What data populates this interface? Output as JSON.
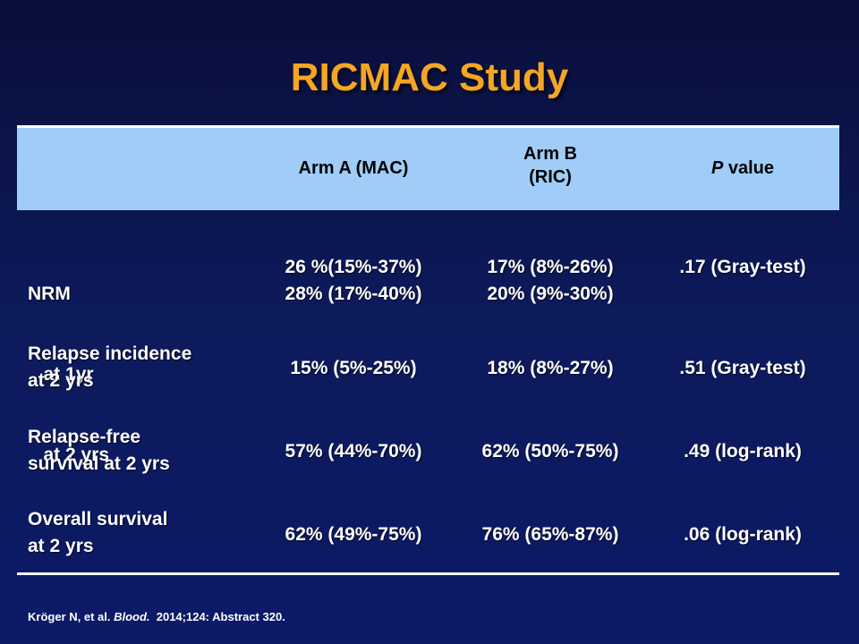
{
  "slide": {
    "title": "RICMAC Study",
    "header": {
      "arm_a": "Arm A (MAC)",
      "arm_b_line1": "Arm B",
      "arm_b_line2": "(RIC)",
      "p_italic": "P",
      "p_rest": " value"
    },
    "rows": [
      {
        "label_lines": [
          "NRM",
          "   at 1yr",
          "   at 2 yrs"
        ],
        "arm_a": [
          "26 %(15%-37%)",
          "28% (17%-40%)"
        ],
        "arm_b": [
          "17% (8%-26%)",
          "20% (9%-30%)"
        ],
        "p": ".17 (Gray-test)"
      },
      {
        "label_lines": [
          "Relapse incidence",
          "at 2 yrs"
        ],
        "arm_a": [
          "15% (5%-25%)"
        ],
        "arm_b": [
          "18% (8%-27%)"
        ],
        "p": ".51 (Gray-test)"
      },
      {
        "label_lines": [
          "Relapse-free",
          "survival at 2 yrs"
        ],
        "arm_a": [
          "57% (44%-70%)"
        ],
        "arm_b": [
          "62% (50%-75%)"
        ],
        "p": ".49 (log-rank)"
      },
      {
        "label_lines": [
          "Overall survival",
          "at 2 yrs"
        ],
        "arm_a": [
          "62% (49%-75%)"
        ],
        "arm_b": [
          "76% (65%-87%)"
        ],
        "p": ".06 (log-rank)"
      }
    ],
    "footnote": {
      "authors": "Kröger N, et al. ",
      "journal": "Blood.",
      "rest": "  2014;124: Abstract 320."
    }
  },
  "colors": {
    "title": "#f5a623",
    "header_band": "#9fcdf8",
    "background": "#0d1a5c"
  }
}
